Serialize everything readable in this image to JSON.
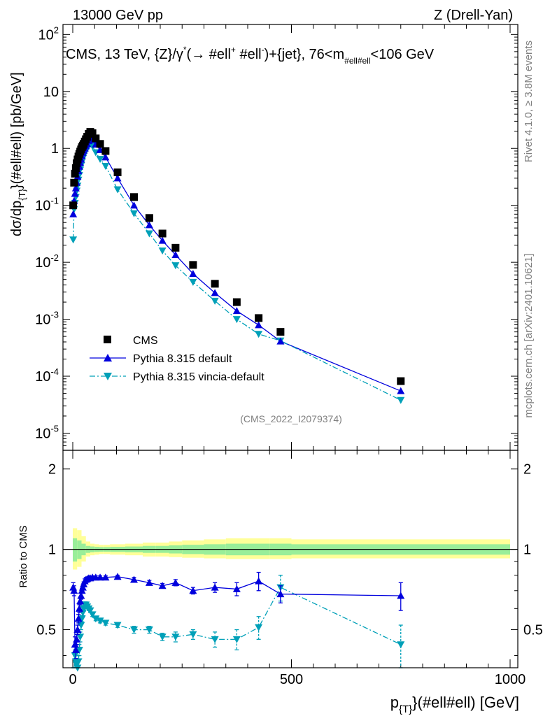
{
  "header": {
    "left": "13000 GeV pp",
    "right": "Z (Drell-Yan)"
  },
  "side": {
    "rivet": "Rivet 4.1.0, ≥ 3.8M events",
    "mcplots": "mcplots.cern.ch [arXiv:2401.10621]"
  },
  "plot": {
    "title_parts": {
      "a": "CMS, 13 TeV, {Z}/γ",
      "star": "*",
      "b": "(→  #ell",
      "plus": "+",
      "c": " #ell",
      "minus": "-",
      "d": ")+{jet}, 76<m",
      "sub": "#ell#ell",
      "e": "<106 GeV"
    },
    "ylabel_parts": {
      "a": "dσ/dp",
      "sub": "{T}",
      "b": "}(#ell#ell) [pb/GeV]"
    },
    "ratio_ylabel": "Ratio to CMS",
    "xlabel_parts": {
      "a": "p",
      "sub": "{T}",
      "b": "}(#ell#ell) [GeV]"
    },
    "analysis_id": "(CMS_2022_I2079374)",
    "upper_ticks": [
      {
        "exp": 2,
        "m": "10",
        "e": "2"
      },
      {
        "exp": 1,
        "m": "10",
        "e": ""
      },
      {
        "exp": 0,
        "m": "1",
        "e": ""
      },
      {
        "exp": -1,
        "m": "10",
        "e": "-1"
      },
      {
        "exp": -2,
        "m": "10",
        "e": "-2"
      },
      {
        "exp": -3,
        "m": "10",
        "e": "-3"
      },
      {
        "exp": -4,
        "m": "10",
        "e": "-4"
      },
      {
        "exp": -5,
        "m": "10",
        "e": "-5"
      }
    ],
    "ratio_ticks": [
      "2",
      "1",
      "0.5"
    ],
    "x_ticks": [
      "0",
      "500",
      "1000"
    ]
  },
  "chart_data": {
    "type": "scatter",
    "title": "CMS, 13 TeV, {Z}/γ* (→ #ell+ #ell-)+{jet}, 76<m_#ell#ell<106 GeV",
    "xlabel": "p_{T}(#ell#ell) [GeV]",
    "ylabel": "dσ/dp_{T}(#ell#ell) [pb/GeV]",
    "xlim": [
      -20,
      1000
    ],
    "ylim": [
      5e-06,
      150
    ],
    "yscale": "log",
    "ratio_ylim": [
      0.36,
      2.35
    ],
    "ratio_yscale": "log",
    "legend": {
      "placement": "lower-left",
      "entries": [
        "CMS",
        "Pythia 8.315 default",
        "Pythia 8.315 vincia-default"
      ]
    },
    "series": [
      {
        "name": "CMS",
        "color": "#000000",
        "marker": "square",
        "x": [
          1,
          3,
          5,
          7,
          9,
          11,
          13,
          15,
          17,
          19,
          21,
          23,
          25,
          27.5,
          30,
          33,
          36.5,
          40,
          45,
          52.5,
          62.5,
          75,
          102.5,
          140,
          175,
          205,
          235,
          275,
          325,
          375,
          425,
          475,
          750
        ],
        "y": [
          0.1,
          0.25,
          0.36,
          0.45,
          0.55,
          0.64,
          0.72,
          0.8,
          0.88,
          0.96,
          1.05,
          1.12,
          1.2,
          1.32,
          1.45,
          1.6,
          1.8,
          1.95,
          1.85,
          1.5,
          1.2,
          0.9,
          0.38,
          0.14,
          0.06,
          0.032,
          0.018,
          0.009,
          0.0042,
          0.002,
          0.00105,
          0.0006,
          8.2e-05
        ]
      },
      {
        "name": "Pythia 8.315 default",
        "color": "#0000dd",
        "marker": "triangle-up",
        "line": "solid",
        "x": [
          1,
          3,
          5,
          7,
          9,
          11,
          13,
          15,
          17,
          19,
          21,
          23,
          25,
          27.5,
          30,
          33,
          36.5,
          40,
          45,
          52.5,
          62.5,
          75,
          102.5,
          140,
          175,
          205,
          235,
          275,
          325,
          375,
          425,
          475,
          750
        ],
        "y": [
          0.07,
          0.12,
          0.16,
          0.2,
          0.25,
          0.32,
          0.4,
          0.48,
          0.56,
          0.64,
          0.74,
          0.84,
          0.92,
          1.0,
          1.1,
          1.2,
          1.35,
          1.5,
          1.42,
          1.17,
          0.94,
          0.7,
          0.3,
          0.1,
          0.045,
          0.024,
          0.0135,
          0.0063,
          0.0029,
          0.0014,
          0.00079,
          0.00041,
          5.5e-05
        ]
      },
      {
        "name": "Pythia 8.315 vincia-default",
        "color": "#00a0b8",
        "marker": "triangle-down",
        "line": "dash-dot",
        "x": [
          1,
          3,
          5,
          7,
          9,
          11,
          13,
          15,
          17,
          19,
          21,
          23,
          25,
          27.5,
          30,
          33,
          36.5,
          40,
          45,
          52.5,
          62.5,
          75,
          102.5,
          140,
          175,
          205,
          235,
          275,
          325,
          375,
          425,
          475,
          750
        ],
        "y": [
          0.025,
          0.085,
          0.11,
          0.14,
          0.18,
          0.22,
          0.28,
          0.34,
          0.42,
          0.5,
          0.58,
          0.66,
          0.74,
          0.82,
          0.9,
          1.0,
          1.1,
          1.2,
          1.1,
          0.85,
          0.65,
          0.49,
          0.19,
          0.072,
          0.032,
          0.016,
          0.0088,
          0.0045,
          0.0021,
          0.001,
          0.00055,
          0.00042,
          3.8e-05
        ]
      }
    ],
    "ratio": {
      "reference_band": {
        "x_edges": [
          0,
          10,
          20,
          30,
          40,
          50,
          60,
          70,
          85,
          120,
          160,
          190,
          220,
          250,
          300,
          350,
          400,
          450,
          500,
          1000
        ],
        "inner_lo": [
          0.9,
          0.92,
          0.95,
          0.97,
          0.975,
          0.978,
          0.98,
          0.98,
          0.978,
          0.975,
          0.97,
          0.97,
          0.965,
          0.96,
          0.955,
          0.95,
          0.95,
          0.95,
          0.955
        ],
        "inner_hi": [
          1.1,
          1.08,
          1.05,
          1.03,
          1.025,
          1.022,
          1.02,
          1.02,
          1.022,
          1.025,
          1.03,
          1.03,
          1.035,
          1.04,
          1.045,
          1.05,
          1.05,
          1.05,
          1.045
        ],
        "outer_lo": [
          0.84,
          0.86,
          0.9,
          0.94,
          0.95,
          0.955,
          0.96,
          0.96,
          0.955,
          0.95,
          0.94,
          0.94,
          0.935,
          0.93,
          0.925,
          0.92,
          0.92,
          0.92,
          0.925
        ],
        "outer_hi": [
          1.2,
          1.18,
          1.12,
          1.07,
          1.05,
          1.045,
          1.04,
          1.04,
          1.045,
          1.05,
          1.06,
          1.06,
          1.07,
          1.08,
          1.09,
          1.1,
          1.1,
          1.1,
          1.09
        ]
      },
      "series": [
        {
          "name": "Pythia 8.315 default",
          "color": "#0000dd",
          "x": [
            1,
            3,
            5,
            7,
            9,
            11,
            13,
            15,
            17,
            19,
            21,
            23,
            25,
            27.5,
            30,
            33,
            36.5,
            40,
            45,
            52.5,
            62.5,
            75,
            102.5,
            140,
            175,
            205,
            235,
            275,
            325,
            375,
            425,
            475,
            750
          ],
          "y": [
            0.72,
            0.7,
            0.44,
            0.42,
            0.46,
            0.5,
            0.55,
            0.6,
            0.64,
            0.67,
            0.7,
            0.72,
            0.74,
            0.76,
            0.77,
            0.775,
            0.78,
            0.78,
            0.785,
            0.785,
            0.785,
            0.785,
            0.79,
            0.77,
            0.75,
            0.73,
            0.75,
            0.7,
            0.72,
            0.71,
            0.76,
            0.68,
            0.67
          ],
          "err": [
            0.03,
            0.03,
            0.03,
            0.03,
            0.02,
            0.02,
            0.02,
            0.02,
            0.02,
            0.02,
            0.015,
            0.015,
            0.015,
            0.015,
            0.015,
            0.01,
            0.01,
            0.01,
            0.01,
            0.01,
            0.01,
            0.01,
            0.01,
            0.015,
            0.015,
            0.015,
            0.02,
            0.02,
            0.03,
            0.04,
            0.06,
            0.05,
            0.08
          ]
        },
        {
          "name": "Pythia 8.315 vincia-default",
          "color": "#00a0b8",
          "x": [
            1,
            3,
            5,
            7,
            9,
            11,
            13,
            15,
            17,
            19,
            21,
            23,
            25,
            27.5,
            30,
            33,
            36.5,
            40,
            45,
            52.5,
            62.5,
            75,
            102.5,
            140,
            175,
            205,
            235,
            275,
            325,
            375,
            425,
            475,
            750
          ],
          "y": [
            0.25,
            0.33,
            0.4,
            0.38,
            0.37,
            0.36,
            0.38,
            0.42,
            0.47,
            0.52,
            0.55,
            0.58,
            0.6,
            0.62,
            0.62,
            0.61,
            0.6,
            0.59,
            0.57,
            0.55,
            0.54,
            0.53,
            0.52,
            0.5,
            0.5,
            0.47,
            0.47,
            0.48,
            0.46,
            0.46,
            0.51,
            0.72,
            0.44
          ],
          "err": [
            0.02,
            0.02,
            0.02,
            0.02,
            0.02,
            0.02,
            0.02,
            0.02,
            0.02,
            0.02,
            0.015,
            0.015,
            0.015,
            0.015,
            0.015,
            0.01,
            0.01,
            0.01,
            0.01,
            0.01,
            0.01,
            0.01,
            0.01,
            0.015,
            0.015,
            0.015,
            0.02,
            0.02,
            0.03,
            0.04,
            0.05,
            0.08,
            0.08
          ]
        }
      ]
    }
  }
}
